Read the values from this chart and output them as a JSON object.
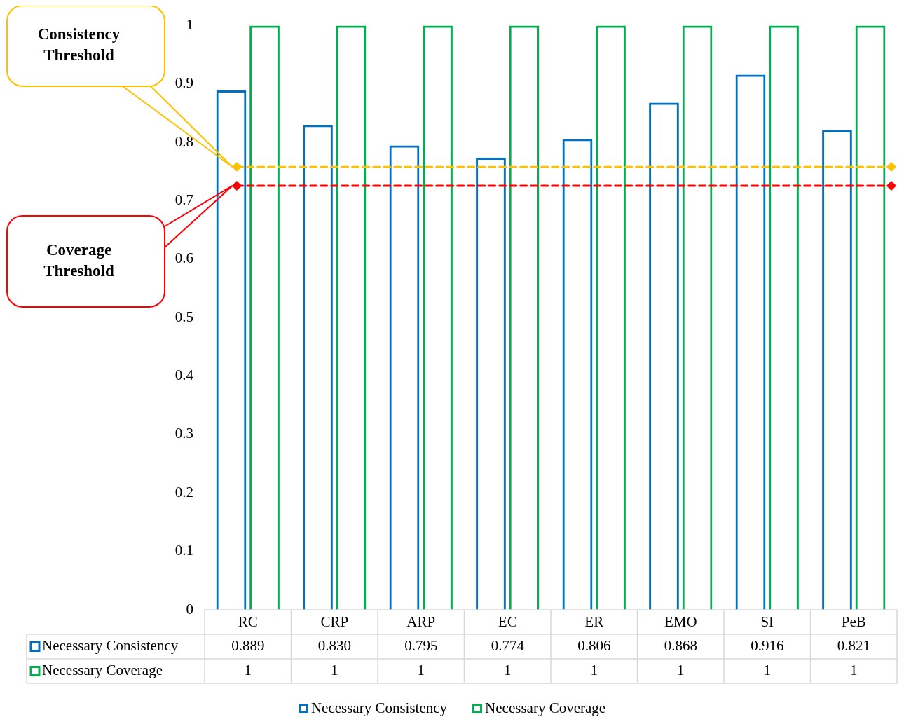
{
  "chart_data": {
    "type": "bar",
    "categories": [
      "RC",
      "CRP",
      "ARP",
      "EC",
      "ER",
      "EMO",
      "SI",
      "PeB"
    ],
    "series": [
      {
        "name": "Necessary Consistency",
        "color": "#0070c0",
        "values": [
          0.889,
          0.83,
          0.795,
          0.774,
          0.806,
          0.868,
          0.916,
          0.821
        ],
        "value_labels": [
          "0.889",
          "0.830",
          "0.795",
          "0.774",
          "0.806",
          "0.868",
          "0.916",
          "0.821"
        ]
      },
      {
        "name": "Necessary Coverage",
        "color": "#00b050",
        "values": [
          1,
          1,
          1,
          1,
          1,
          1,
          1,
          1
        ],
        "value_labels": [
          "1",
          "1",
          "1",
          "1",
          "1",
          "1",
          "1",
          "1"
        ]
      }
    ],
    "ylim": [
      0,
      1
    ],
    "yticks": [
      0,
      0.1,
      0.2,
      0.3,
      0.4,
      0.5,
      0.6,
      0.7,
      0.8,
      0.9,
      1
    ],
    "ref_lines": [
      {
        "axis": "y",
        "value": 0.758,
        "color": "#ffc000",
        "line_style": "dashed"
      },
      {
        "axis": "y",
        "value": 0.726,
        "color": "#ff0000",
        "line_style": "dashed"
      }
    ],
    "annotations": [
      "Consistency Threshold",
      "Coverage Threshold"
    ],
    "legend": "bottom",
    "grid": false
  }
}
